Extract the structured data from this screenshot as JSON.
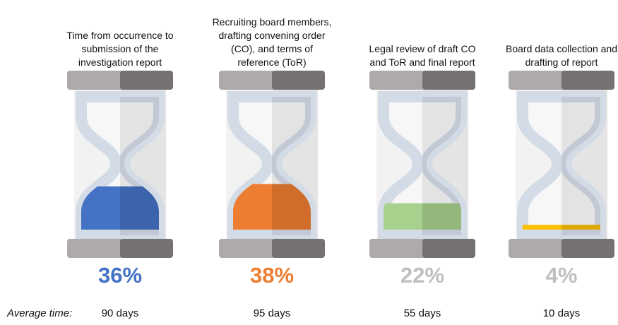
{
  "chart_data": {
    "type": "hourglass",
    "categories": [
      "Time from occurrence to submission of the investigation report",
      "Recruiting board members, drafting convening order (CO), and terms of reference (ToR)",
      "Legal review of draft CO and ToR and final report",
      "Board data collection and drafting of report"
    ],
    "values": [
      36,
      38,
      22,
      4
    ],
    "value_labels": [
      "36%",
      "38%",
      "22%",
      "4%"
    ],
    "colors": [
      "#4472c4",
      "#ed7d31",
      "#a9d18e",
      "#ffc000"
    ],
    "label_colors": [
      "#4472c4",
      "#ed7d31",
      "#bfbfbf",
      "#bfbfbf"
    ],
    "average_time_label": "Average time:",
    "average_times": [
      "90 days",
      "95 days",
      "55 days",
      "10 days"
    ]
  }
}
